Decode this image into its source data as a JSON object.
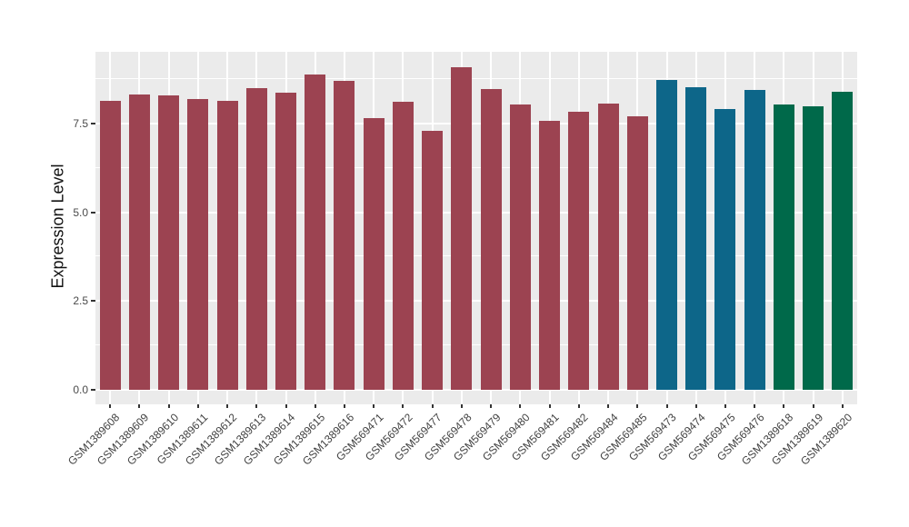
{
  "chart_data": {
    "type": "bar",
    "title": "",
    "xlabel": "",
    "ylabel": "Expression Level",
    "ylim": [
      0,
      9.5
    ],
    "y_tick_labels": [
      "0.0",
      "2.5",
      "5.0",
      "7.5"
    ],
    "y_tick_values": [
      0,
      2.5,
      5.0,
      7.5
    ],
    "y_minor_values": [
      1.25,
      3.75,
      6.25,
      8.75
    ],
    "grid": true,
    "legend_position": "none",
    "panel_background": "#EBEBEB",
    "grid_color": "#FFFFFF",
    "categories": [
      "GSM1389608",
      "GSM1389609",
      "GSM1389610",
      "GSM1389611",
      "GSM1389612",
      "GSM1389613",
      "GSM1389614",
      "GSM1389615",
      "GSM1389616",
      "GSM569471",
      "GSM569472",
      "GSM569477",
      "GSM569478",
      "GSM569479",
      "GSM569480",
      "GSM569481",
      "GSM569482",
      "GSM569484",
      "GSM569485",
      "GSM569473",
      "GSM569474",
      "GSM569475",
      "GSM569476",
      "GSM1389618",
      "GSM1389619",
      "GSM1389620"
    ],
    "values": [
      8.15,
      8.33,
      8.3,
      8.2,
      8.15,
      8.51,
      8.38,
      8.89,
      8.71,
      7.66,
      8.11,
      7.29,
      9.1,
      8.47,
      8.03,
      7.58,
      7.84,
      8.06,
      7.71,
      8.73,
      8.53,
      7.9,
      8.46,
      8.05,
      8.0,
      8.4
    ],
    "groups": [
      "maroon",
      "maroon",
      "maroon",
      "maroon",
      "maroon",
      "maroon",
      "maroon",
      "maroon",
      "maroon",
      "maroon",
      "maroon",
      "maroon",
      "maroon",
      "maroon",
      "maroon",
      "maroon",
      "maroon",
      "maroon",
      "maroon",
      "blue",
      "blue",
      "blue",
      "blue",
      "green",
      "green",
      "green"
    ],
    "group_colors": {
      "maroon": "#9C4351",
      "blue": "#0D6689",
      "green": "#00694A"
    }
  }
}
